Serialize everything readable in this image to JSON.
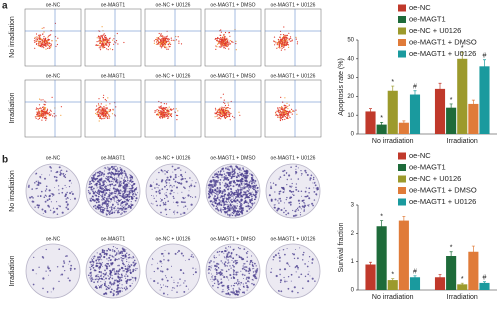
{
  "panel_labels": [
    "a",
    "b"
  ],
  "flow_cytometry": {
    "row_labels": [
      "No irradiation",
      "Irradiation"
    ],
    "column_labels": [
      "oe-NC",
      "oe-MAGT1",
      "oe-NC + U0126",
      "oe-MAGT1 + DMSO",
      "oe-MAGT1 + U0126"
    ]
  },
  "colony_formation": {
    "row_labels": [
      "No irradiation",
      "Irradiation"
    ],
    "column_labels": [
      "oe-NC",
      "oe-MAGT1",
      "oe-NC + U0126",
      "oe-MAGT1 + DMSO",
      "oe-MAGT1 + U0126"
    ]
  },
  "chart_data": [
    {
      "type": "bar",
      "y_label": "Apoptosis rate (%)",
      "categories": [
        "No irradiation",
        "Irradiation"
      ],
      "ylim": [
        0,
        50
      ],
      "yticks": [
        0,
        10,
        20,
        30,
        40,
        50
      ],
      "legend": "upper right",
      "series": [
        {
          "name": "oe-NC",
          "color": "#c0392b",
          "values": [
            12,
            24
          ],
          "errors": [
            1.5,
            3
          ],
          "annotations": [
            null,
            null
          ]
        },
        {
          "name": "oe-MAGT1",
          "color": "#1e6b3a",
          "values": [
            5,
            14
          ],
          "errors": [
            1.2,
            2
          ],
          "annotations": [
            "*",
            "*"
          ]
        },
        {
          "name": "oe-NC + U0126",
          "color": "#9c9a2c",
          "values": [
            23,
            40
          ],
          "errors": [
            2.5,
            3.5
          ],
          "annotations": [
            "*",
            "*"
          ]
        },
        {
          "name": "oe-MAGT1 + DMSO",
          "color": "#e07b39",
          "values": [
            6,
            16
          ],
          "errors": [
            1,
            2
          ],
          "annotations": [
            null,
            null
          ]
        },
        {
          "name": "oe-MAGT1 + U0126",
          "color": "#1a9a9e",
          "values": [
            21,
            36
          ],
          "errors": [
            2,
            3.5
          ],
          "annotations": [
            "#",
            "#"
          ]
        }
      ]
    },
    {
      "type": "bar",
      "y_label": "Survival fraction",
      "categories": [
        "No irradiation",
        "Irradiation"
      ],
      "ylim": [
        0,
        3
      ],
      "yticks": [
        0,
        1,
        2,
        3
      ],
      "legend": "upper right",
      "series": [
        {
          "name": "oe-NC",
          "color": "#c0392b",
          "values": [
            0.9,
            0.45
          ],
          "errors": [
            0.08,
            0.1
          ],
          "annotations": [
            null,
            null
          ]
        },
        {
          "name": "oe-MAGT1",
          "color": "#1e6b3a",
          "values": [
            2.25,
            1.2
          ],
          "errors": [
            0.2,
            0.15
          ],
          "annotations": [
            "*",
            "*"
          ]
        },
        {
          "name": "oe-NC + U0126",
          "color": "#9c9a2c",
          "values": [
            0.35,
            0.2
          ],
          "errors": [
            0.05,
            0.04
          ],
          "annotations": [
            "*",
            "*"
          ]
        },
        {
          "name": "oe-MAGT1 + DMSO",
          "color": "#e07b39",
          "values": [
            2.45,
            1.35
          ],
          "errors": [
            0.15,
            0.2
          ],
          "annotations": [
            null,
            null
          ]
        },
        {
          "name": "oe-MAGT1 + U0126",
          "color": "#1a9a9e",
          "values": [
            0.45,
            0.25
          ],
          "errors": [
            0.05,
            0.04
          ],
          "annotations": [
            "#",
            "#"
          ]
        }
      ]
    }
  ]
}
